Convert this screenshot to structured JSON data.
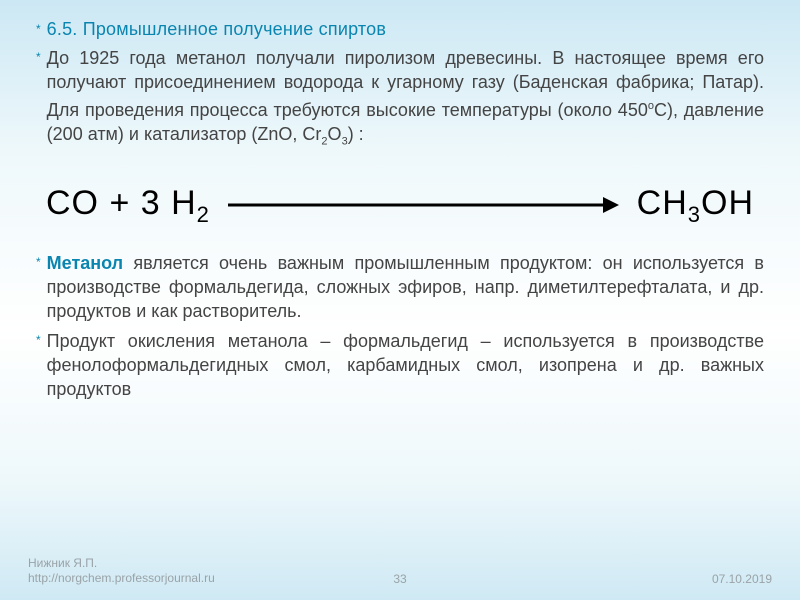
{
  "colors": {
    "accent": "#0a85b0",
    "body_text": "#444444",
    "equation_text": "#000000",
    "footer_text": "#9aa3a7",
    "bg_top": "#cce8f4",
    "bg_mid": "#ffffff",
    "bg_bottom": "#cfe9f4"
  },
  "typography": {
    "heading_fontsize": 18,
    "body_fontsize": 18,
    "body_lineheight": 24,
    "equation_fontsize": 34,
    "footer_fontsize": 12
  },
  "heading": "6.5. Промышленное получение спиртов",
  "p1_a": "До 1925 года метанол получали пиролизом древесины. В настоящее время его получают присоединением водорода к угарному газу (Баденская фабрика; Патар). Для проведения процесса требуются высокие температуры (около 450",
  "p1_deg": "о",
  "p1_b": "С), давление (200 атм) и катализатор (ZnO, Cr",
  "p1_sub1": "2",
  "p1_c": "O",
  "p1_sub2": "3",
  "p1_d": ") :",
  "equation": {
    "lhs_a": "CO  +  3 H",
    "lhs_sub": "2",
    "rhs_a": "CH",
    "rhs_sub1": "3",
    "rhs_b": "OH"
  },
  "p2_term": "Метанол",
  "p2_body": " является очень важным промышленным продуктом: он используется в производстве формальдегида, сложных эфиров, напр. диметилтерефталата, и др. продуктов и как растворитель.",
  "p3": "Продукт окисления метанола – формальдегид – используется в производстве фенолоформальдегидных смол, карбамидных смол, изопрена и др. важных продуктов",
  "footer": {
    "author": "Нижник Я.П.",
    "url": "http://norgchem.professorjournal.ru",
    "page": "33",
    "date": "07.10.2019"
  }
}
